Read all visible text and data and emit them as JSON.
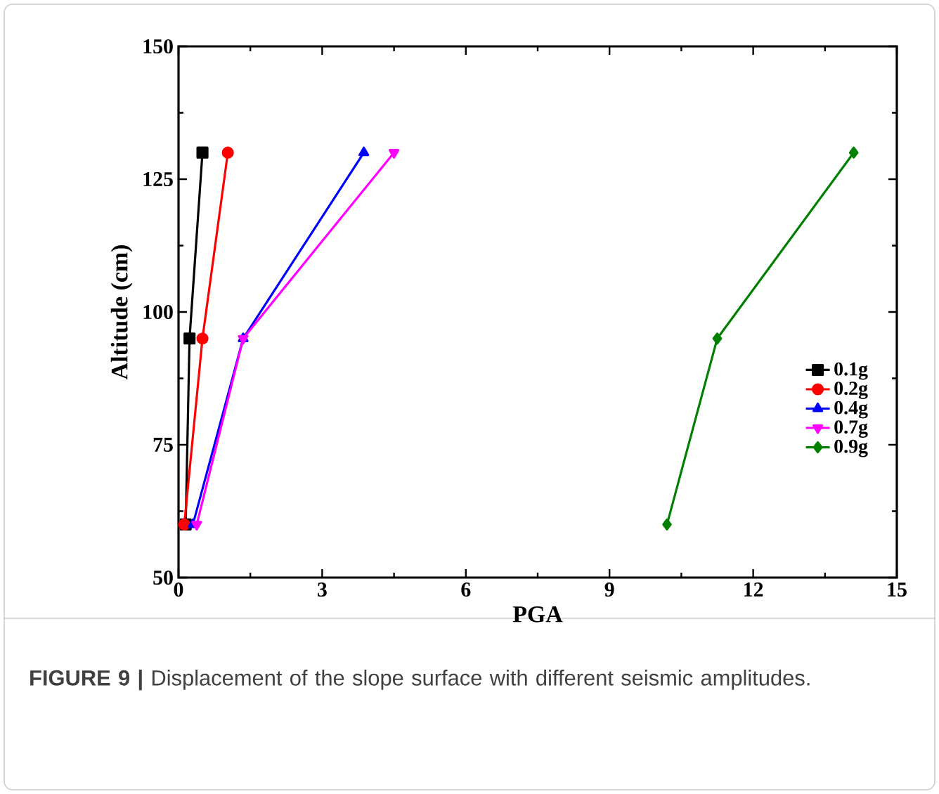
{
  "chart_data": {
    "type": "line",
    "xlabel": "PGA",
    "ylabel": "Altitude (cm)",
    "series": [
      {
        "name": "0.1g",
        "color": "#000000",
        "marker": "square",
        "x": [
          0.15,
          0.23,
          0.5
        ],
        "values": [
          60,
          95,
          130
        ]
      },
      {
        "name": "0.2g",
        "color": "#ff0000",
        "marker": "circle",
        "x": [
          0.12,
          0.5,
          1.03
        ],
        "values": [
          60,
          95,
          130
        ]
      },
      {
        "name": "0.4g",
        "color": "#0000ff",
        "marker": "triangle",
        "x": [
          0.3,
          1.35,
          3.87
        ],
        "values": [
          60,
          95,
          130
        ]
      },
      {
        "name": "0.7g",
        "color": "#ff00ff",
        "marker": "triangle down",
        "x": [
          0.38,
          1.35,
          4.5
        ],
        "values": [
          60,
          95,
          130
        ]
      },
      {
        "name": "0.9g",
        "color": "#008000",
        "marker": "diamond",
        "x": [
          10.2,
          11.25,
          14.1
        ],
        "values": [
          60,
          95,
          130
        ]
      }
    ],
    "xlim": [
      0,
      15
    ],
    "xticks": [
      0,
      3,
      6,
      9,
      12,
      15
    ],
    "ylim": [
      50,
      150
    ],
    "yticks": [
      50,
      75,
      100,
      125,
      150
    ],
    "grid": false,
    "legend": "right",
    "line_style": "solid",
    "annotations": [
      "**FIGURE 9 |** Displacement of the slope surface with different seismic amplitudes."
    ]
  }
}
